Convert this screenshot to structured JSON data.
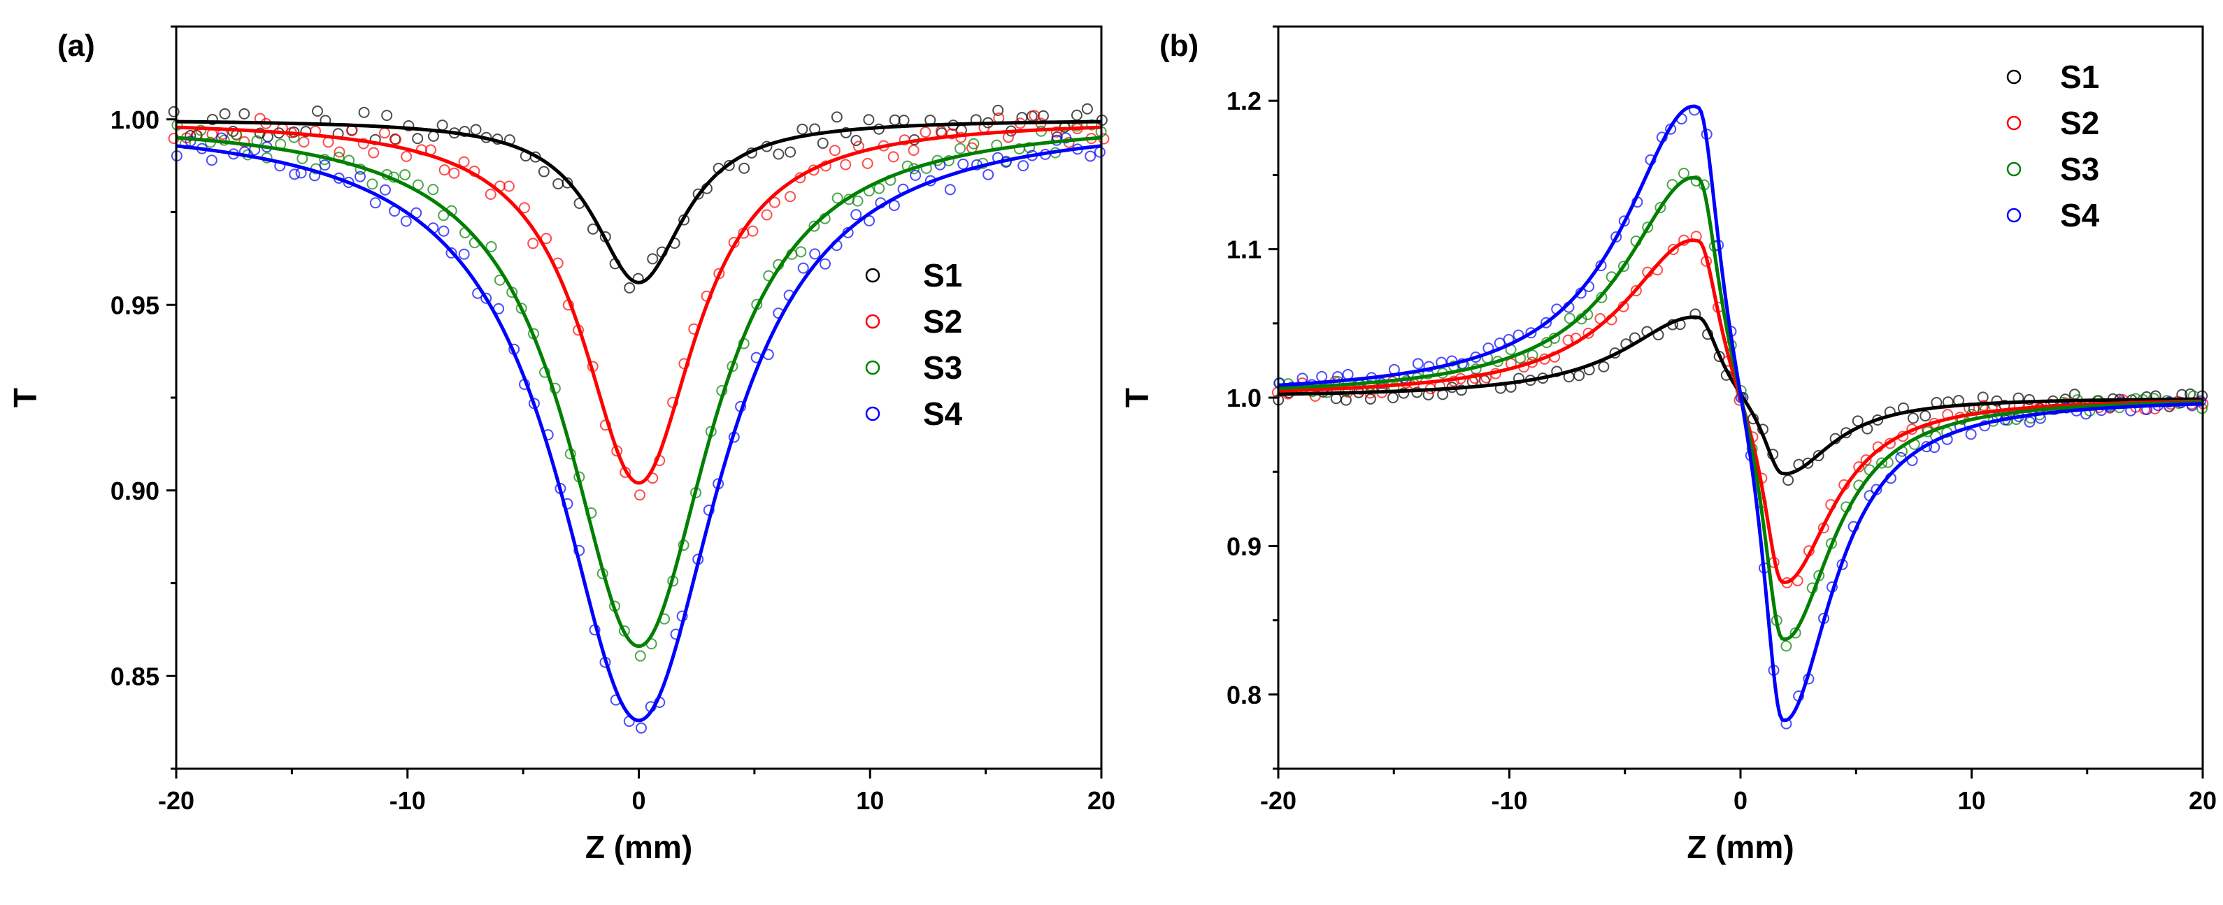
{
  "chart_data": [
    {
      "panel": "(a)",
      "type": "scatter",
      "xlabel": "Z (mm)",
      "ylabel": "T",
      "xlim": [
        -20,
        20
      ],
      "ylim": [
        0.825,
        1.025
      ],
      "xticks": [
        -20,
        -10,
        0,
        10,
        20
      ],
      "tick_labels_x": [
        "-20",
        "-10",
        "0",
        "10",
        "20"
      ],
      "yticks": [
        0.85,
        0.9,
        0.95,
        1.0
      ],
      "tick_labels_y": [
        "0.85",
        "0.90",
        "0.95",
        "1.00"
      ],
      "grid": false,
      "legend_position": "center-right",
      "fit_model": "closed-aperture dip",
      "series": [
        {
          "name": "S1",
          "color": "#000000",
          "min": 0.956,
          "z0": 2.4
        },
        {
          "name": "S2",
          "color": "#ff0000",
          "min": 0.902,
          "z0": 3.0
        },
        {
          "name": "S3",
          "color": "#008000",
          "min": 0.858,
          "z0": 3.8
        },
        {
          "name": "S4",
          "color": "#0000ff",
          "min": 0.838,
          "z0": 4.3
        }
      ]
    },
    {
      "panel": "(b)",
      "type": "scatter",
      "xlabel": "Z (mm)",
      "ylabel": "T",
      "xlim": [
        -20,
        20
      ],
      "ylim": [
        0.75,
        1.25
      ],
      "xticks": [
        -20,
        -10,
        0,
        10,
        20
      ],
      "tick_labels_x": [
        "-20",
        "-10",
        "0",
        "10",
        "20"
      ],
      "yticks": [
        0.8,
        0.9,
        1.0,
        1.1,
        1.2
      ],
      "tick_labels_y": [
        "0.8",
        "0.9",
        "1.0",
        "1.1",
        "1.2"
      ],
      "grid": false,
      "legend_position": "top-right",
      "fit_model": "peak-valley",
      "series": [
        {
          "name": "S1",
          "color": "#000000",
          "peak_x": -1.8,
          "peak": 1.058,
          "valley_x": 1.8,
          "valley": 0.944
        },
        {
          "name": "S2",
          "color": "#ff0000",
          "peak_x": -1.8,
          "peak": 1.115,
          "valley_x": 1.8,
          "valley": 0.866
        },
        {
          "name": "S3",
          "color": "#008000",
          "peak_x": -1.8,
          "peak": 1.16,
          "valley_x": 1.8,
          "valley": 0.824
        },
        {
          "name": "S4",
          "color": "#0000ff",
          "peak_x": -1.8,
          "peak": 1.212,
          "valley_x": 1.8,
          "valley": 0.765
        }
      ]
    }
  ]
}
